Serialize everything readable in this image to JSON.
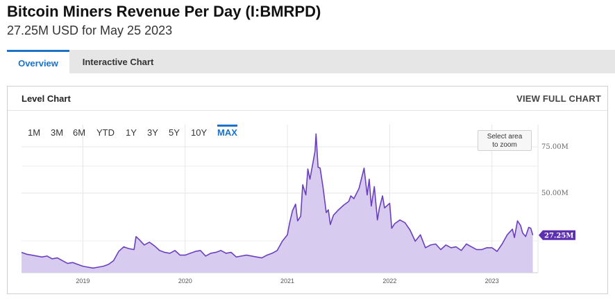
{
  "header": {
    "title": "Bitcoin Miners Revenue Per Day (I:BMRPD)",
    "subtitle": "27.25M USD for May 25 2023"
  },
  "tabs": [
    {
      "label": "Overview",
      "active": true
    },
    {
      "label": "Interactive Chart",
      "active": false
    }
  ],
  "panel": {
    "title": "Level Chart",
    "view_full": "VIEW FULL CHART",
    "zoom_hint_line1": "Select area",
    "zoom_hint_line2": "to zoom"
  },
  "ranges": [
    "1M",
    "3M",
    "6M",
    "YTD",
    "1Y",
    "3Y",
    "5Y",
    "10Y",
    "MAX"
  ],
  "active_range": "MAX",
  "colors": {
    "line": "#6a3fbf",
    "fill": "#d7cbef",
    "accent": "#1a73c9",
    "label_bg": "#5b2fb0"
  },
  "chart_data": {
    "type": "area",
    "x_tick_labels": [
      "2019",
      "2020",
      "2021",
      "2022",
      "2023"
    ],
    "y_tick_labels": [
      "75.00M",
      "50.00M"
    ],
    "y_ticks": [
      75,
      50
    ],
    "ylim": [
      7,
      87
    ],
    "xlim": [
      2018.4,
      2023.45
    ],
    "grid": true,
    "last_value_label": "27.25M",
    "series": [
      {
        "unit": "M USD",
        "x": [
          2018.4,
          2018.45,
          2018.5,
          2018.55,
          2018.6,
          2018.65,
          2018.7,
          2018.75,
          2018.8,
          2018.85,
          2018.9,
          2018.95,
          2019.0,
          2019.05,
          2019.1,
          2019.15,
          2019.2,
          2019.25,
          2019.3,
          2019.35,
          2019.4,
          2019.45,
          2019.5,
          2019.52,
          2019.55,
          2019.6,
          2019.65,
          2019.7,
          2019.75,
          2019.8,
          2019.85,
          2019.9,
          2019.95,
          2020.0,
          2020.05,
          2020.1,
          2020.15,
          2020.2,
          2020.25,
          2020.3,
          2020.35,
          2020.4,
          2020.45,
          2020.5,
          2020.55,
          2020.6,
          2020.65,
          2020.7,
          2020.75,
          2020.8,
          2020.85,
          2020.9,
          2020.95,
          2021.0,
          2021.02,
          2021.05,
          2021.08,
          2021.1,
          2021.13,
          2021.15,
          2021.18,
          2021.2,
          2021.22,
          2021.25,
          2021.27,
          2021.28,
          2021.3,
          2021.32,
          2021.35,
          2021.38,
          2021.4,
          2021.42,
          2021.45,
          2021.5,
          2021.55,
          2021.6,
          2021.62,
          2021.65,
          2021.7,
          2021.75,
          2021.78,
          2021.8,
          2021.82,
          2021.85,
          2021.88,
          2021.9,
          2021.93,
          2021.95,
          2022.0,
          2022.02,
          2022.05,
          2022.1,
          2022.15,
          2022.2,
          2022.25,
          2022.3,
          2022.35,
          2022.4,
          2022.45,
          2022.5,
          2022.55,
          2022.6,
          2022.65,
          2022.7,
          2022.75,
          2022.8,
          2022.85,
          2022.9,
          2022.95,
          2023.0,
          2023.05,
          2023.1,
          2023.15,
          2023.2,
          2023.22,
          2023.25,
          2023.28,
          2023.3,
          2023.33,
          2023.36,
          2023.38,
          2023.4
        ],
        "values": [
          18.0,
          17.0,
          16.5,
          16.0,
          15.5,
          16.0,
          14.5,
          15.0,
          13.5,
          12.0,
          12.5,
          11.5,
          10.5,
          10.0,
          9.5,
          10.0,
          10.5,
          11.5,
          13.5,
          18.5,
          21.0,
          20.0,
          19.5,
          26.5,
          25.0,
          22.0,
          23.5,
          21.5,
          19.0,
          18.0,
          17.5,
          19.0,
          16.5,
          16.5,
          17.5,
          18.5,
          19.0,
          16.0,
          17.5,
          18.0,
          19.0,
          17.5,
          18.0,
          15.5,
          16.0,
          16.5,
          16.0,
          15.5,
          15.0,
          16.5,
          17.5,
          19.0,
          24.0,
          27.5,
          33.5,
          40.5,
          44.0,
          35.0,
          37.5,
          54.5,
          49.0,
          63.0,
          57.5,
          66.5,
          72.5,
          82.0,
          64.0,
          63.5,
          52.5,
          39.5,
          41.0,
          33.0,
          38.0,
          41.0,
          43.5,
          45.5,
          48.5,
          47.0,
          52.5,
          63.5,
          49.0,
          57.5,
          43.0,
          53.5,
          35.5,
          42.0,
          48.5,
          42.0,
          44.5,
          31.0,
          33.5,
          35.5,
          34.0,
          30.0,
          24.0,
          27.5,
          20.5,
          22.0,
          22.5,
          19.5,
          22.0,
          20.5,
          21.0,
          19.0,
          22.5,
          21.0,
          19.5,
          19.5,
          20.5,
          20.5,
          18.5,
          22.5,
          27.5,
          30.5,
          26.0,
          35.0,
          32.5,
          28.5,
          26.5,
          31.5,
          31.0,
          27.3
        ]
      }
    ]
  }
}
